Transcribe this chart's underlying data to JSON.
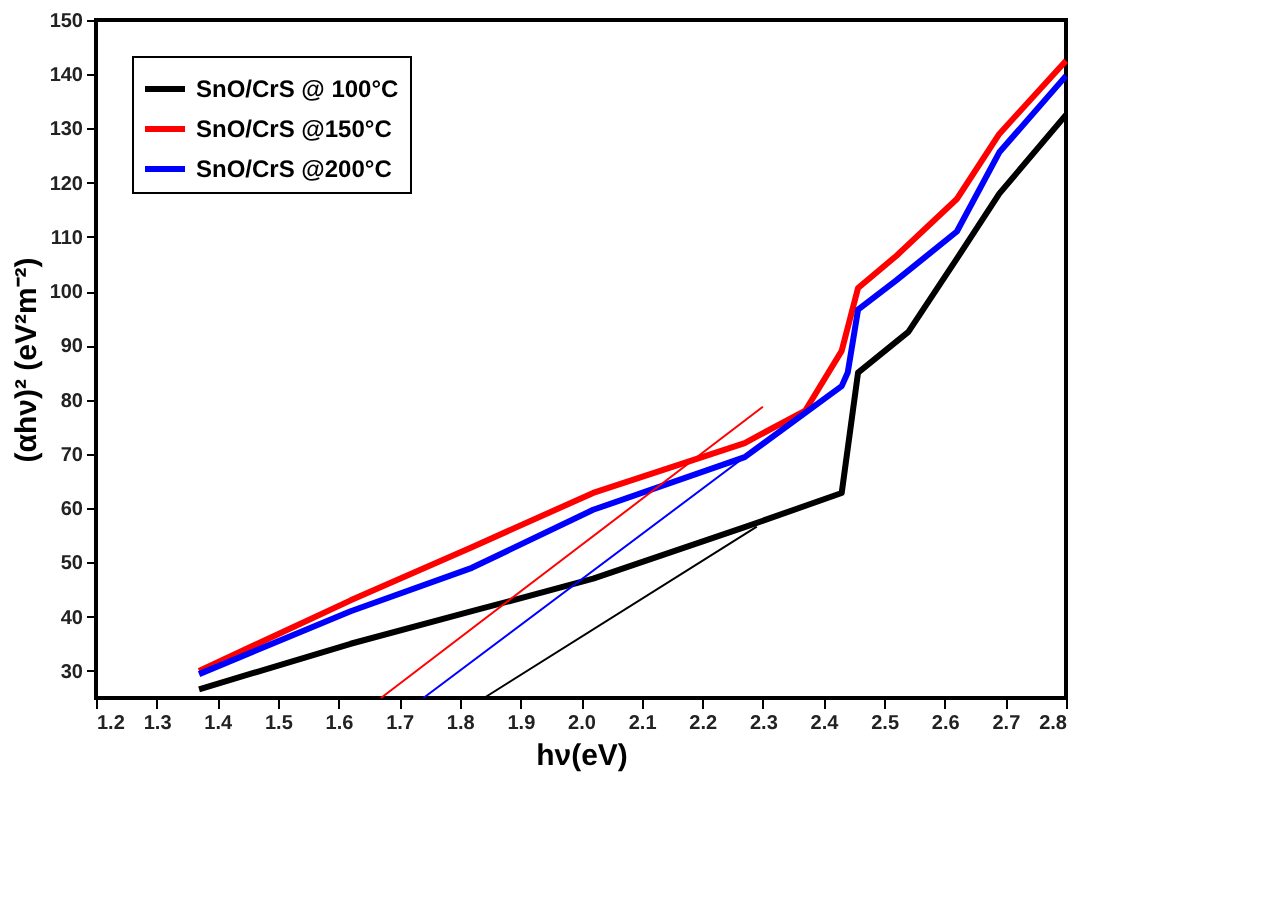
{
  "chart_data": {
    "type": "line",
    "xlabel": "hν(eV)",
    "ylabel": "(αhν)² (eV²m⁻²)",
    "xlim": [
      1.2,
      2.8
    ],
    "ylim": [
      25,
      150
    ],
    "xticks": [
      1.2,
      1.3,
      1.4,
      1.5,
      1.6,
      1.7,
      1.8,
      1.9,
      {
        "value": 2,
        "label": "2.0"
      },
      2.1,
      2.2,
      2.3,
      2.4,
      2.5,
      2.6,
      2.7,
      2.8
    ],
    "yticks": [
      30,
      40,
      50,
      60,
      70,
      80,
      90,
      100,
      110,
      120,
      130,
      140,
      150
    ],
    "grid": false,
    "legend": "top left",
    "marker": "none",
    "line_style": "solid",
    "series": [
      {
        "name": "SnO/CrS @ 100°C",
        "color": "#000000",
        "x": [
          1.37,
          1.62,
          1.82,
          2.02,
          2.27,
          2.43,
          2.457,
          2.54,
          2.62,
          2.69,
          2.8
        ],
        "values": [
          26.6,
          35,
          41,
          47,
          56.5,
          62.8,
          85,
          92.5,
          106,
          118,
          132.5
        ]
      },
      {
        "name": "SnO/CrS @150°C",
        "color": "#ff0000",
        "x": [
          1.37,
          1.62,
          1.82,
          2.02,
          2.27,
          2.37,
          2.43,
          2.457,
          2.52,
          2.62,
          2.69,
          2.8
        ],
        "values": [
          30,
          43,
          52.8,
          62.8,
          72,
          78,
          89,
          100.6,
          106.5,
          117,
          129,
          142.5
        ]
      },
      {
        "name": "SnO/CrS @200°C",
        "color": "#0000ff",
        "x": [
          1.37,
          1.62,
          1.82,
          2.02,
          2.27,
          2.43,
          2.44,
          2.457,
          2.52,
          2.62,
          2.69,
          2.8
        ],
        "values": [
          29.4,
          41,
          49,
          59.7,
          69.4,
          82.5,
          85,
          96.6,
          102,
          111,
          125.6,
          139.7
        ]
      },
      {
        "type": "line",
        "color": "#000000",
        "x": [
          1.84,
          2.29
        ],
        "values": [
          25,
          56.6
        ]
      },
      {
        "type": "line",
        "color": "#ff0000",
        "x": [
          1.67,
          2.3
        ],
        "values": [
          25,
          78.7
        ]
      },
      {
        "type": "line",
        "color": "#0000ff",
        "x": [
          1.74,
          2.34
        ],
        "values": [
          25,
          75.3
        ]
      }
    ]
  }
}
